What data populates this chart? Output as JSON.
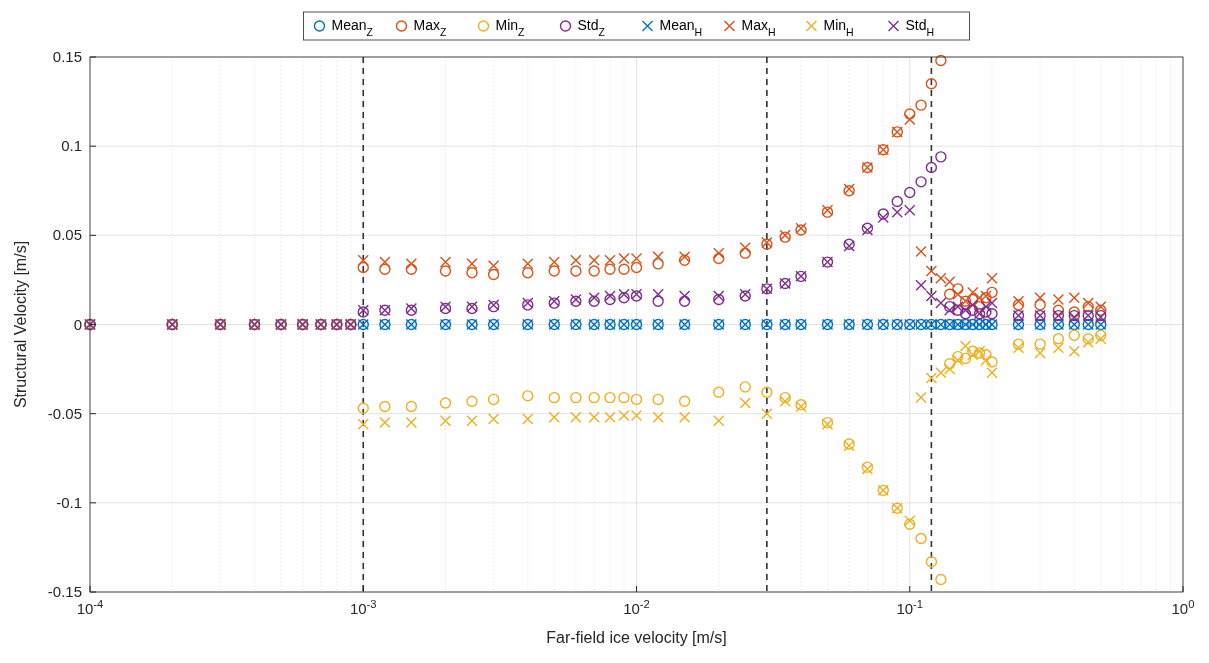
{
  "chart_data": {
    "type": "scatter",
    "xlabel": "Far-field ice velocity [m/s]",
    "ylabel": "Structural Velocity [m/s]",
    "log": "x",
    "grid": true,
    "legend": "top",
    "xlim": [
      0.0001,
      1
    ],
    "ylim": [
      -0.15,
      0.15
    ],
    "xticks": [
      {
        "value": 0.0001,
        "label": "10$^{-4}$"
      },
      {
        "value": 0.001,
        "label": "10$^{-3}$"
      },
      {
        "value": 0.01,
        "label": "10$^{-2}$"
      },
      {
        "value": 0.1,
        "label": "10$^{-1}$"
      },
      {
        "value": 1,
        "label": "10$^{0}$"
      }
    ],
    "yticks": [
      -0.15,
      -0.1,
      -0.05,
      0,
      0.05,
      0.1,
      0.15
    ],
    "ref_lines": [
      {
        "axis": "x",
        "value": 0.001,
        "color": "#333333",
        "line_style": "dashed"
      },
      {
        "axis": "x",
        "value": 0.03,
        "color": "#333333",
        "line_style": "dashed"
      },
      {
        "axis": "x",
        "value": 0.12,
        "color": "#333333",
        "line_style": "dashed"
      }
    ],
    "x": [
      0.0001,
      0.0002,
      0.0003,
      0.0004,
      0.0005,
      0.0006,
      0.0007,
      0.0008,
      0.0009,
      0.001,
      0.0012,
      0.0015,
      0.002,
      0.0025,
      0.003,
      0.004,
      0.005,
      0.006,
      0.007,
      0.008,
      0.009,
      0.01,
      0.012,
      0.015,
      0.02,
      0.025,
      0.03,
      0.035,
      0.04,
      0.05,
      0.06,
      0.07,
      0.08,
      0.09,
      0.1,
      0.11,
      0.12,
      0.13,
      0.14,
      0.15,
      0.16,
      0.17,
      0.18,
      0.19,
      0.2,
      0.25,
      0.3,
      0.35,
      0.4,
      0.45,
      0.5
    ],
    "series": [
      {
        "name": "Mean$_{Z}$",
        "color": "#0072bd",
        "marker": "circle",
        "values": [
          0,
          0,
          0,
          0,
          0,
          0,
          0,
          0,
          0,
          0,
          0,
          0,
          0,
          0,
          0,
          0,
          0,
          0,
          0,
          0,
          0,
          0,
          0,
          0,
          0,
          0,
          0,
          0,
          0,
          0,
          0,
          0,
          0,
          0,
          0,
          0,
          0,
          0,
          0,
          0,
          0,
          0,
          0,
          0,
          0,
          0,
          0,
          0,
          0,
          0,
          0
        ]
      },
      {
        "name": "Max$_{Z}$",
        "color": "#d95319",
        "marker": "circle",
        "values": [
          0,
          0,
          0,
          0,
          0,
          0,
          0,
          0,
          0,
          0.032,
          0.031,
          0.031,
          0.03,
          0.029,
          0.028,
          0.029,
          0.03,
          0.03,
          0.03,
          0.031,
          0.031,
          0.032,
          0.034,
          0.036,
          0.037,
          0.04,
          0.045,
          0.049,
          0.053,
          0.063,
          0.075,
          0.088,
          0.098,
          0.108,
          0.118,
          0.123,
          0.135,
          0.148,
          0.017,
          0.02,
          0.013,
          0.014,
          0.01,
          0.015,
          0.018,
          0.011,
          0.011,
          0.008,
          0.007,
          0.01,
          0.008
        ]
      },
      {
        "name": "Min$_{Z}$",
        "color": "#edb120",
        "marker": "circle",
        "values": [
          0,
          0,
          0,
          0,
          0,
          0,
          0,
          0,
          0,
          -0.047,
          -0.046,
          -0.046,
          -0.044,
          -0.043,
          -0.042,
          -0.04,
          -0.041,
          -0.041,
          -0.041,
          -0.041,
          -0.041,
          -0.042,
          -0.042,
          -0.043,
          -0.038,
          -0.035,
          -0.038,
          -0.041,
          -0.045,
          -0.055,
          -0.067,
          -0.08,
          -0.093,
          -0.103,
          -0.112,
          -0.12,
          -0.133,
          -0.143,
          -0.022,
          -0.018,
          -0.019,
          -0.015,
          -0.016,
          -0.017,
          -0.021,
          -0.011,
          -0.011,
          -0.008,
          -0.006,
          -0.008,
          -0.006
        ]
      },
      {
        "name": "Std$_{Z}$",
        "color": "#7e2f8e",
        "marker": "circle",
        "values": [
          0,
          0,
          0,
          0,
          0,
          0,
          0,
          0,
          0,
          0.007,
          0.008,
          0.008,
          0.009,
          0.009,
          0.01,
          0.011,
          0.012,
          0.013,
          0.013,
          0.014,
          0.015,
          0.016,
          0.013,
          0.013,
          0.014,
          0.016,
          0.02,
          0.023,
          0.027,
          0.035,
          0.045,
          0.054,
          0.062,
          0.069,
          0.074,
          0.08,
          0.088,
          0.094,
          0.01,
          0.008,
          0.006,
          0.008,
          0.006,
          0.007,
          0.006,
          0.005,
          0.005,
          0.005,
          0.005,
          0.005,
          0.005
        ]
      },
      {
        "name": "Mean$_{H}$",
        "color": "#0072bd",
        "marker": "cross",
        "values": [
          0,
          0,
          0,
          0,
          0,
          0,
          0,
          0,
          0,
          0,
          0,
          0,
          0,
          0,
          0,
          0,
          0,
          0,
          0,
          0,
          0,
          0,
          0,
          0,
          0,
          0,
          0,
          0,
          0,
          0,
          0,
          0,
          0,
          0,
          0,
          0,
          0,
          0,
          0,
          0,
          0,
          0,
          0,
          0,
          0,
          0,
          0,
          0,
          0,
          0,
          0
        ]
      },
      {
        "name": "Max$_{H}$",
        "color": "#d95319",
        "marker": "cross",
        "values": [
          0,
          0,
          0,
          0,
          0,
          0,
          0,
          0,
          0,
          0.036,
          0.035,
          0.034,
          0.035,
          0.034,
          0.033,
          0.034,
          0.035,
          0.036,
          0.036,
          0.036,
          0.037,
          0.037,
          0.038,
          0.038,
          0.04,
          0.043,
          0.046,
          0.05,
          0.054,
          0.064,
          0.076,
          0.088,
          0.098,
          0.108,
          0.115,
          0.041,
          0.03,
          0.026,
          0.024,
          0.017,
          0.013,
          0.018,
          0.015,
          0.016,
          0.026,
          0.013,
          0.015,
          0.014,
          0.015,
          0.012,
          0.01
        ]
      },
      {
        "name": "Min$_{H}$",
        "color": "#edb120",
        "marker": "cross",
        "values": [
          0,
          0,
          0,
          0,
          0,
          0,
          0,
          0,
          0,
          -0.056,
          -0.055,
          -0.055,
          -0.054,
          -0.054,
          -0.053,
          -0.053,
          -0.052,
          -0.052,
          -0.052,
          -0.052,
          -0.051,
          -0.051,
          -0.052,
          -0.052,
          -0.054,
          -0.044,
          -0.05,
          -0.043,
          -0.046,
          -0.056,
          -0.068,
          -0.081,
          -0.093,
          -0.103,
          -0.11,
          -0.041,
          -0.03,
          -0.027,
          -0.025,
          -0.02,
          -0.012,
          -0.017,
          -0.015,
          -0.02,
          -0.027,
          -0.013,
          -0.016,
          -0.013,
          -0.015,
          -0.01,
          -0.008
        ]
      },
      {
        "name": "Std$_{H}$",
        "color": "#7e2f8e",
        "marker": "cross",
        "values": [
          0,
          0,
          0,
          0,
          0,
          0,
          0,
          0,
          0,
          0.008,
          0.008,
          0.009,
          0.01,
          0.01,
          0.011,
          0.012,
          0.013,
          0.014,
          0.015,
          0.016,
          0.017,
          0.017,
          0.017,
          0.016,
          0.016,
          0.017,
          0.02,
          0.023,
          0.027,
          0.035,
          0.044,
          0.053,
          0.06,
          0.063,
          0.064,
          0.022,
          0.016,
          0.012,
          0.008,
          0.01,
          0.008,
          0.011,
          0.006,
          0.01,
          0.012,
          0.005,
          0.005,
          0.005,
          0.004,
          0.005,
          0.004
        ]
      }
    ]
  }
}
